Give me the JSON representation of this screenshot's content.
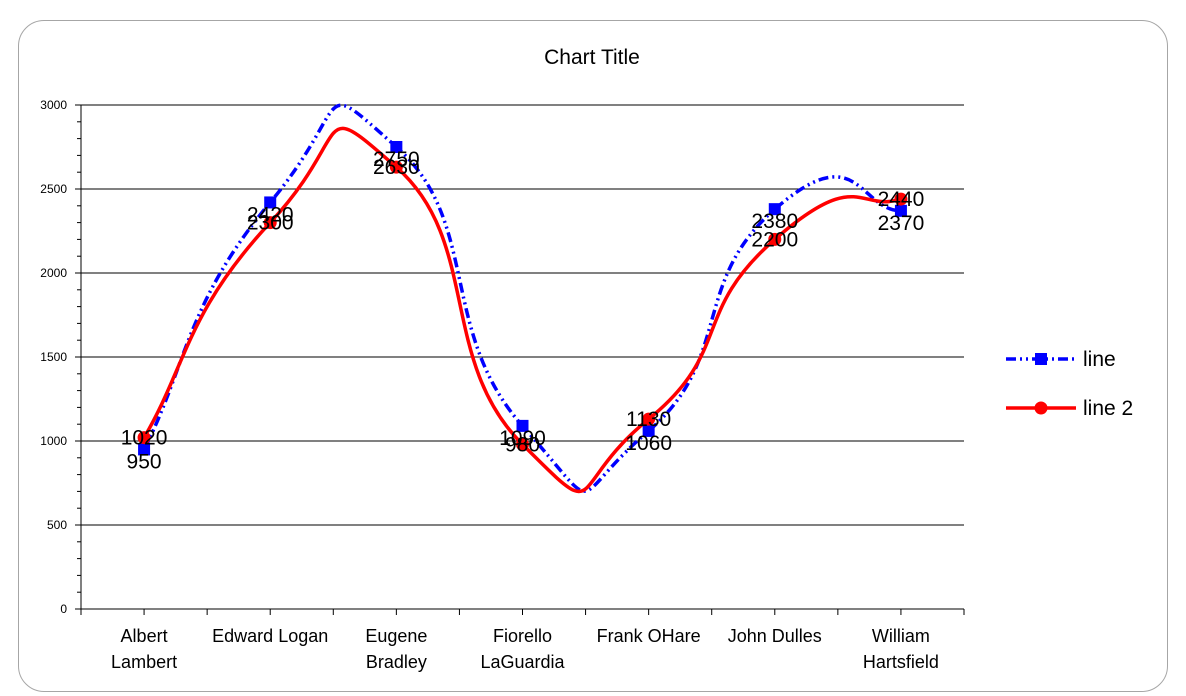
{
  "chart_data": {
    "type": "line",
    "title": "Chart Title",
    "xlabel": "",
    "ylabel": "",
    "ylim": [
      0,
      3000
    ],
    "yticks": [
      0,
      500,
      1000,
      1500,
      2000,
      2500,
      3000
    ],
    "grid": "horizontal-major",
    "smooth": true,
    "legend_position": "right",
    "categories": [
      [
        "Albert",
        "Lambert"
      ],
      [
        "Edward Logan"
      ],
      [
        "Eugene",
        "Bradley"
      ],
      [
        "Fiorello",
        "LaGuardia"
      ],
      [
        "Frank OHare"
      ],
      [
        "John Dulles"
      ],
      [
        "William",
        "Hartsfield"
      ]
    ],
    "series": [
      {
        "name": "line",
        "values": [
          950,
          2420,
          2750,
          1090,
          1060,
          2380,
          2370
        ],
        "color": "#0000ff",
        "marker": "square",
        "line_style": "dash-dot-dot",
        "label_dy": 12
      },
      {
        "name": "line 2",
        "values": [
          1020,
          2300,
          2630,
          980,
          1130,
          2200,
          2440
        ],
        "color": "#ff0000",
        "marker": "circle",
        "line_style": "solid",
        "label_dy": 0
      }
    ]
  }
}
